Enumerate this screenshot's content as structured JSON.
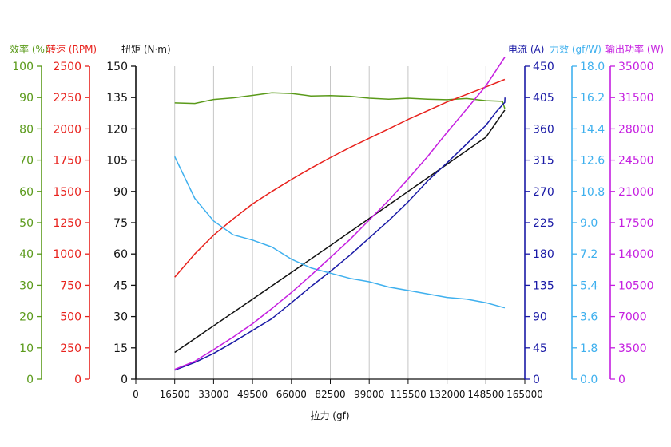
{
  "chart_data": {
    "type": "line",
    "xlabel": "拉力 (gf)",
    "x_ticks": [
      "0",
      "16500",
      "33000",
      "49500",
      "66000",
      "82500",
      "99000",
      "115500",
      "132000",
      "148500",
      "165000"
    ],
    "xlim": [
      0,
      165000
    ],
    "axes": [
      {
        "id": "eff",
        "label": "效率 (%)",
        "color": "#5a9a1a",
        "side": "left",
        "min": 0,
        "max": 100,
        "ticks": [
          "0",
          "10",
          "20",
          "30",
          "40",
          "50",
          "60",
          "70",
          "80",
          "90",
          "100"
        ]
      },
      {
        "id": "rpm",
        "label": "转速 (RPM)",
        "color": "#e8211c",
        "side": "left",
        "min": 0,
        "max": 2500,
        "ticks": [
          "0",
          "250",
          "500",
          "750",
          "1000",
          "1250",
          "1500",
          "1750",
          "2000",
          "2250",
          "2500"
        ]
      },
      {
        "id": "torque",
        "label": "扭矩 (N·m)",
        "color": "#111111",
        "side": "left",
        "min": 0,
        "max": 150,
        "ticks": [
          "0",
          "15",
          "30",
          "45",
          "60",
          "75",
          "90",
          "105",
          "120",
          "135",
          "150"
        ]
      },
      {
        "id": "cur",
        "label": "电流 (A)",
        "color": "#1a1aa6",
        "side": "right",
        "min": 0,
        "max": 450,
        "ticks": [
          "0",
          "45",
          "90",
          "135",
          "180",
          "225",
          "270",
          "315",
          "360",
          "405",
          "450"
        ]
      },
      {
        "id": "force",
        "label": "力效 (gf/W)",
        "color": "#3fb0ee",
        "side": "right",
        "min": 0,
        "max": 18,
        "ticks": [
          "0.0",
          "1.8",
          "3.6",
          "5.4",
          "7.2",
          "9.0",
          "10.8",
          "12.6",
          "14.4",
          "16.2",
          "18.0"
        ]
      },
      {
        "id": "power",
        "label": "输出功率 (W)",
        "color": "#c51fe0",
        "side": "right",
        "min": 0,
        "max": 35000,
        "ticks": [
          "0",
          "3500",
          "7000",
          "10500",
          "14000",
          "17500",
          "21000",
          "24500",
          "28000",
          "31500",
          "35000"
        ]
      }
    ],
    "series": [
      {
        "axis": "eff",
        "color": "#5a9a1a",
        "points": [
          [
            16500,
            88.3
          ],
          [
            25000,
            88.1
          ],
          [
            33000,
            89.4
          ],
          [
            41250,
            89.9
          ],
          [
            49500,
            90.7
          ],
          [
            57750,
            91.5
          ],
          [
            66000,
            91.3
          ],
          [
            74250,
            90.5
          ],
          [
            82500,
            90.6
          ],
          [
            90750,
            90.4
          ],
          [
            99000,
            89.8
          ],
          [
            107250,
            89.5
          ],
          [
            115500,
            89.8
          ],
          [
            123750,
            89.5
          ],
          [
            132000,
            89.3
          ],
          [
            140250,
            89.7
          ],
          [
            148500,
            89.0
          ],
          [
            155500,
            88.8
          ],
          [
            156500,
            86.5
          ]
        ]
      },
      {
        "axis": "rpm",
        "color": "#e8211c",
        "points": [
          [
            16500,
            815
          ],
          [
            25000,
            1000
          ],
          [
            33000,
            1150
          ],
          [
            41250,
            1280
          ],
          [
            49500,
            1400
          ],
          [
            57750,
            1500
          ],
          [
            66000,
            1595
          ],
          [
            74250,
            1685
          ],
          [
            82500,
            1770
          ],
          [
            90750,
            1850
          ],
          [
            99000,
            1925
          ],
          [
            107250,
            2000
          ],
          [
            115500,
            2075
          ],
          [
            123750,
            2145
          ],
          [
            132000,
            2215
          ],
          [
            140250,
            2275
          ],
          [
            148500,
            2335
          ],
          [
            156500,
            2395
          ]
        ]
      },
      {
        "axis": "torque",
        "color": "#111111",
        "points": [
          [
            16500,
            12.8
          ],
          [
            49500,
            38.3
          ],
          [
            82500,
            64
          ],
          [
            115500,
            90
          ],
          [
            148500,
            116
          ],
          [
            156500,
            129
          ]
        ]
      },
      {
        "axis": "cur",
        "color": "#1a1aa6",
        "points": [
          [
            16500,
            13
          ],
          [
            25000,
            24
          ],
          [
            33000,
            37
          ],
          [
            41250,
            53
          ],
          [
            49500,
            70
          ],
          [
            57750,
            87
          ],
          [
            66000,
            110
          ],
          [
            74250,
            133
          ],
          [
            82500,
            155
          ],
          [
            90750,
            178
          ],
          [
            99000,
            203
          ],
          [
            107250,
            228
          ],
          [
            115500,
            255
          ],
          [
            123750,
            285
          ],
          [
            132000,
            311
          ],
          [
            140250,
            338
          ],
          [
            148500,
            365
          ],
          [
            153000,
            385
          ],
          [
            156500,
            398
          ],
          [
            156600,
            405
          ]
        ]
      },
      {
        "axis": "force",
        "color": "#3fb0ee",
        "points": [
          [
            16500,
            12.8
          ],
          [
            25000,
            10.4
          ],
          [
            33000,
            9.1
          ],
          [
            41250,
            8.3
          ],
          [
            49500,
            8.0
          ],
          [
            57750,
            7.6
          ],
          [
            66000,
            6.9
          ],
          [
            74250,
            6.4
          ],
          [
            82500,
            6.1
          ],
          [
            90750,
            5.8
          ],
          [
            99000,
            5.6
          ],
          [
            107250,
            5.3
          ],
          [
            115500,
            5.1
          ],
          [
            123750,
            4.9
          ],
          [
            132000,
            4.7
          ],
          [
            140250,
            4.6
          ],
          [
            148500,
            4.4
          ],
          [
            156500,
            4.1
          ]
        ]
      },
      {
        "axis": "power",
        "color": "#c51fe0",
        "points": [
          [
            16500,
            1100
          ],
          [
            25000,
            2000
          ],
          [
            33000,
            3300
          ],
          [
            41250,
            4700
          ],
          [
            49500,
            6200
          ],
          [
            57750,
            7900
          ],
          [
            66000,
            9700
          ],
          [
            74250,
            11600
          ],
          [
            82500,
            13600
          ],
          [
            90750,
            15600
          ],
          [
            99000,
            17800
          ],
          [
            107250,
            20000
          ],
          [
            115500,
            22400
          ],
          [
            123750,
            24900
          ],
          [
            132000,
            27600
          ],
          [
            140250,
            30200
          ],
          [
            148500,
            32800
          ],
          [
            156500,
            36000
          ]
        ]
      }
    ]
  }
}
